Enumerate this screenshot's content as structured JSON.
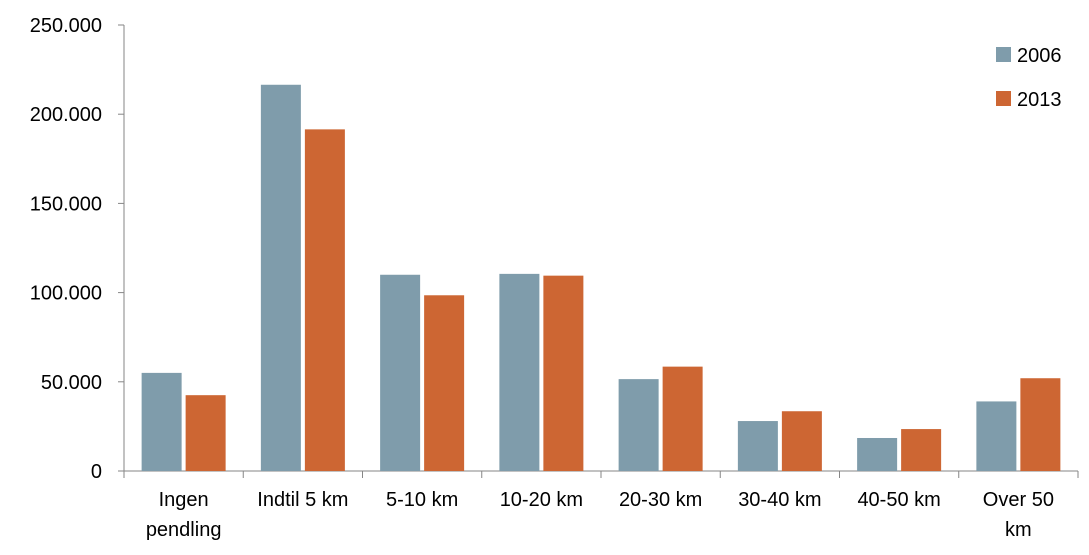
{
  "chart_data": {
    "type": "bar",
    "title": "",
    "xlabel": "",
    "ylabel": "",
    "categories": [
      [
        "Ingen",
        "pendling"
      ],
      [
        "Indtil 5 km"
      ],
      [
        "5-10 km"
      ],
      [
        "10-20 km"
      ],
      [
        "20-30 km"
      ],
      [
        "30-40 km"
      ],
      [
        "40-50 km"
      ],
      [
        "Over 50",
        "km"
      ]
    ],
    "series": [
      {
        "name": "2006",
        "color": "#7f9cab",
        "values": [
          55000,
          216500,
          110000,
          110500,
          51500,
          28000,
          18500,
          39000
        ]
      },
      {
        "name": "2013",
        "color": "#cd6633",
        "values": [
          42500,
          191500,
          98500,
          109500,
          58500,
          33500,
          23500,
          52000
        ]
      }
    ],
    "ylim": [
      0,
      250000
    ],
    "yticks": [
      0,
      50000,
      100000,
      150000,
      200000,
      250000
    ],
    "ytick_labels": [
      "0",
      "50.000",
      "100.000",
      "150.000",
      "200.000",
      "250.000"
    ],
    "grid": false,
    "legend": "top-right"
  }
}
